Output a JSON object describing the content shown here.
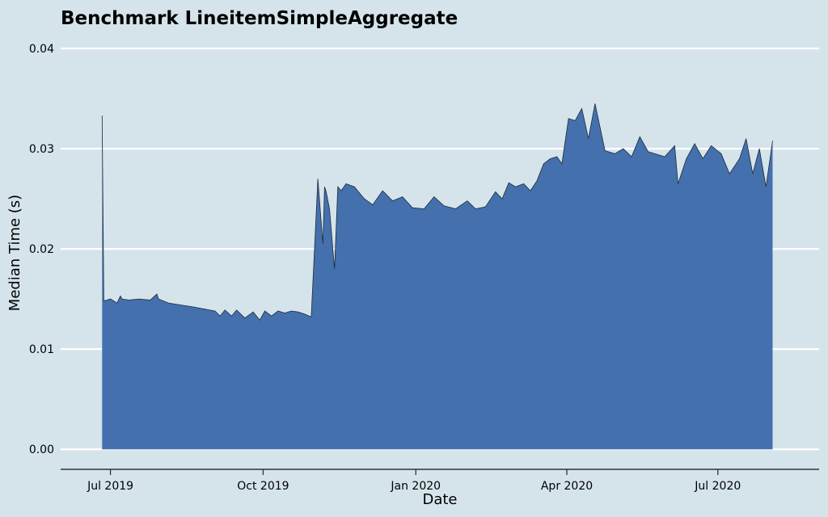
{
  "chart_data": {
    "type": "area",
    "title": "Benchmark LineitemSimpleAggregate",
    "xlabel": "Date",
    "ylabel": "Median Time (s)",
    "xlim": [
      "2019-06-01",
      "2020-08-31"
    ],
    "ylim": [
      -0.002,
      0.04
    ],
    "y_ticks": [
      0.0,
      0.01,
      0.02,
      0.03,
      0.04
    ],
    "y_tick_labels": [
      "0.00",
      "0.01",
      "0.02",
      "0.03",
      "0.04"
    ],
    "x_ticks": [
      "2019-07-01",
      "2019-10-01",
      "2020-01-01",
      "2020-04-01",
      "2020-07-01"
    ],
    "x_tick_labels": [
      "Jul 2019",
      "Oct 2019",
      "Jan 2020",
      "Apr 2020",
      "Jul 2020"
    ],
    "grid": "horizontal",
    "colors": {
      "background": "#d5e4eb",
      "fill": "#4470ad",
      "line": "#1f2a3a",
      "grid": "#ffffff",
      "axis": "#333333"
    },
    "series": [
      {
        "x": [
          "2019-06-26",
          "2019-06-27",
          "2019-07-01",
          "2019-07-05",
          "2019-07-07",
          "2019-07-08",
          "2019-07-12",
          "2019-07-18",
          "2019-07-25",
          "2019-07-29",
          "2019-07-30",
          "2019-08-05",
          "2019-08-20",
          "2019-09-02",
          "2019-09-05",
          "2019-09-08",
          "2019-09-12",
          "2019-09-15",
          "2019-09-20",
          "2019-09-25",
          "2019-09-29",
          "2019-10-02",
          "2019-10-06",
          "2019-10-10",
          "2019-10-14",
          "2019-10-18",
          "2019-10-22",
          "2019-10-26",
          "2019-10-30",
          "2019-11-03",
          "2019-11-06",
          "2019-11-07",
          "2019-11-08",
          "2019-11-10",
          "2019-11-13",
          "2019-11-15",
          "2019-11-17",
          "2019-11-20",
          "2019-11-25",
          "2019-12-01",
          "2019-12-06",
          "2019-12-12",
          "2019-12-18",
          "2019-12-24",
          "2019-12-30",
          "2020-01-06",
          "2020-01-12",
          "2020-01-18",
          "2020-01-25",
          "2020-02-01",
          "2020-02-06",
          "2020-02-12",
          "2020-02-18",
          "2020-02-22",
          "2020-02-26",
          "2020-03-01",
          "2020-03-06",
          "2020-03-10",
          "2020-03-14",
          "2020-03-18",
          "2020-03-22",
          "2020-03-26",
          "2020-03-29",
          "2020-04-02",
          "2020-04-06",
          "2020-04-10",
          "2020-04-14",
          "2020-04-18",
          "2020-04-24",
          "2020-04-30",
          "2020-05-05",
          "2020-05-10",
          "2020-05-15",
          "2020-05-20",
          "2020-05-30",
          "2020-06-05",
          "2020-06-07",
          "2020-06-12",
          "2020-06-17",
          "2020-06-22",
          "2020-06-27",
          "2020-07-03",
          "2020-07-08",
          "2020-07-14",
          "2020-07-18",
          "2020-07-22",
          "2020-07-26",
          "2020-07-30",
          "2020-08-03"
        ],
        "y": [
          0.0333,
          0.0148,
          0.015,
          0.0146,
          0.0153,
          0.015,
          0.0149,
          0.015,
          0.0149,
          0.0155,
          0.015,
          0.0146,
          0.0142,
          0.0138,
          0.0133,
          0.0139,
          0.0133,
          0.0139,
          0.0131,
          0.0137,
          0.0129,
          0.0138,
          0.0133,
          0.0138,
          0.0136,
          0.0138,
          0.0137,
          0.0135,
          0.0132,
          0.027,
          0.0205,
          0.0262,
          0.0257,
          0.024,
          0.018,
          0.0262,
          0.0258,
          0.0265,
          0.0262,
          0.025,
          0.0244,
          0.0258,
          0.0248,
          0.0252,
          0.0241,
          0.024,
          0.0252,
          0.0243,
          0.024,
          0.0248,
          0.024,
          0.0242,
          0.0257,
          0.025,
          0.0266,
          0.0262,
          0.0265,
          0.0258,
          0.0268,
          0.0285,
          0.029,
          0.0292,
          0.0285,
          0.033,
          0.0328,
          0.034,
          0.031,
          0.0345,
          0.0298,
          0.0295,
          0.03,
          0.0292,
          0.0312,
          0.0297,
          0.0292,
          0.0303,
          0.0265,
          0.029,
          0.0305,
          0.029,
          0.0303,
          0.0295,
          0.0275,
          0.029,
          0.031,
          0.0275,
          0.03,
          0.0262,
          0.0308
        ]
      }
    ]
  }
}
